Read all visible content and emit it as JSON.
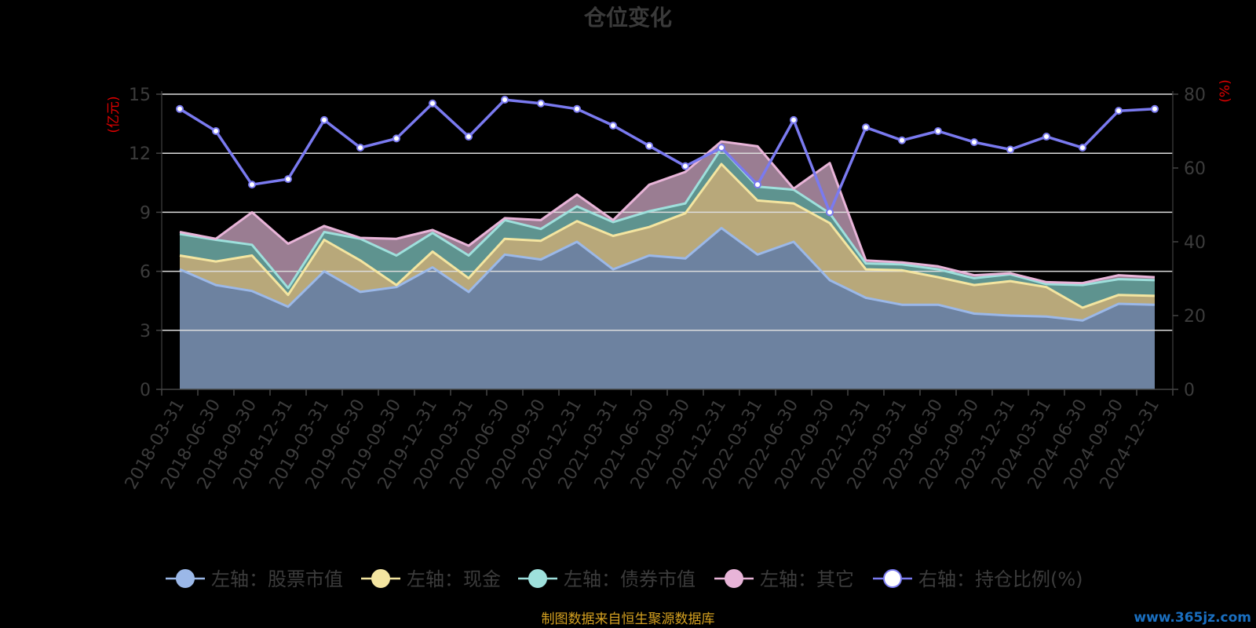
{
  "chart_data": {
    "type": "area",
    "title": "仓位变化",
    "left_unit": "(亿元)",
    "right_unit": "(%)",
    "left_ylim": [
      0,
      15
    ],
    "left_ticks": [
      0,
      3,
      6,
      9,
      12,
      15
    ],
    "right_ylim": [
      0,
      80
    ],
    "right_ticks": [
      0,
      20,
      40,
      60,
      80
    ],
    "grid": true,
    "legend_position": "bottom",
    "categories": [
      "2018-03-31",
      "2018-06-30",
      "2018-09-30",
      "2018-12-31",
      "2019-03-31",
      "2019-06-30",
      "2019-09-30",
      "2019-12-31",
      "2020-03-31",
      "2020-06-30",
      "2020-09-30",
      "2020-12-31",
      "2021-03-31",
      "2021-06-30",
      "2021-09-30",
      "2021-12-31",
      "2022-03-31",
      "2022-06-30",
      "2022-09-30",
      "2022-12-31",
      "2023-03-31",
      "2023-06-30",
      "2023-09-30",
      "2023-12-31",
      "2024-03-31",
      "2024-06-30",
      "2024-09-30",
      "2024-12-31"
    ],
    "series": [
      {
        "name": "左轴：股票市值",
        "axis": "left",
        "stack": true,
        "color": "#9bb8e8",
        "fill": "#6d82a0",
        "values": [
          6.1,
          5.3,
          5.0,
          4.2,
          6.0,
          4.95,
          5.2,
          6.2,
          4.95,
          6.85,
          6.6,
          7.5,
          6.1,
          6.8,
          6.65,
          8.2,
          6.85,
          7.5,
          5.55,
          4.65,
          4.3,
          4.3,
          3.85,
          3.75,
          3.7,
          3.5,
          4.35,
          4.3
        ]
      },
      {
        "name": "左轴：现金",
        "axis": "left",
        "stack": true,
        "color": "#f4e5a0",
        "fill": "#b8a87a",
        "values": [
          0.7,
          1.2,
          1.8,
          0.6,
          1.6,
          1.6,
          0.1,
          0.8,
          0.7,
          0.8,
          0.95,
          1.05,
          1.7,
          1.45,
          2.3,
          3.25,
          2.75,
          1.95,
          2.9,
          1.45,
          1.75,
          1.4,
          1.45,
          1.75,
          1.5,
          0.65,
          0.45,
          0.45
        ]
      },
      {
        "name": "左轴：债券市值",
        "axis": "left",
        "stack": true,
        "color": "#9ee0dc",
        "fill": "#5e938f",
        "values": [
          1.1,
          1.1,
          0.55,
          0.35,
          0.4,
          1.1,
          1.5,
          0.95,
          1.15,
          0.95,
          0.6,
          0.75,
          0.7,
          0.8,
          0.5,
          0.8,
          0.7,
          0.7,
          0.5,
          0.3,
          0.3,
          0.4,
          0.35,
          0.35,
          0.15,
          1.15,
          0.8,
          0.8
        ]
      },
      {
        "name": "左轴：其它",
        "axis": "left",
        "stack": true,
        "color": "#e8b4d8",
        "fill": "#9a7d92",
        "values": [
          0.1,
          0.05,
          1.65,
          2.25,
          0.3,
          0.05,
          0.85,
          0.15,
          0.5,
          0.1,
          0.45,
          0.6,
          0.1,
          1.35,
          1.6,
          0.35,
          2.05,
          0.05,
          2.55,
          0.15,
          0.1,
          0.15,
          0.15,
          0.05,
          0.1,
          0.1,
          0.2,
          0.15
        ]
      },
      {
        "name": "右轴：持仓比例(%)",
        "axis": "right",
        "stack": false,
        "color": "#7a7af0",
        "values": [
          76,
          70,
          55.5,
          57,
          73,
          65.5,
          68,
          77.5,
          68.5,
          78.5,
          77.5,
          76,
          71.5,
          66,
          60.5,
          65.5,
          55.5,
          73,
          48,
          71,
          67.5,
          70,
          67,
          65,
          68.5,
          65.5,
          75.5,
          76
        ]
      }
    ]
  },
  "footer": {
    "source": "制图数据来自恒生聚源数据库",
    "watermark": "www.365jz.com"
  }
}
